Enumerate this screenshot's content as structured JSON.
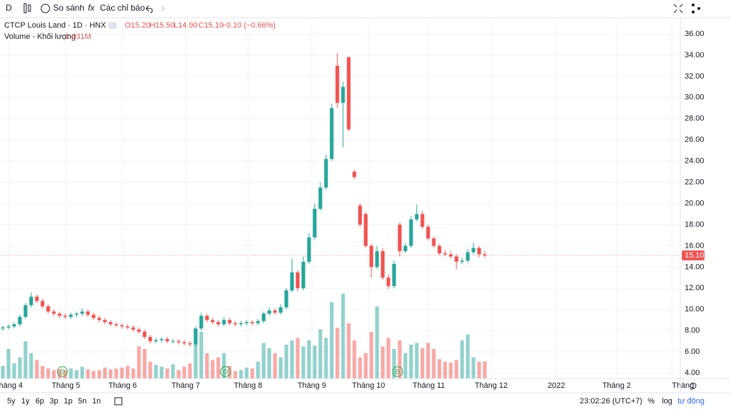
{
  "toolbar": {
    "interval": "D",
    "compare": "So sánh",
    "indicators": "Các chỉ báo"
  },
  "legend": {
    "symbol": "CTCP Louis Land · 1D · HNX",
    "open": "O15.20",
    "high": "H15.50",
    "low": "L14.90",
    "close": "C15.10",
    "change": "−0.10 (−0.66%)",
    "volume_name": "Volume - Khối lượng",
    "volume_value": "2.031M"
  },
  "chart_data": {
    "type": "candlestick",
    "x": [
      1,
      3,
      5,
      7,
      9,
      11,
      13,
      15,
      17,
      19,
      21,
      23,
      25,
      27,
      29,
      31,
      33,
      35,
      37,
      39,
      41,
      43,
      45,
      47,
      49,
      51,
      53,
      55,
      57,
      59,
      61,
      63,
      65,
      67,
      69,
      71,
      73,
      75,
      77,
      79,
      81,
      83,
      85,
      87,
      89,
      91,
      93,
      95,
      97,
      99,
      101,
      103,
      105,
      107,
      109,
      111,
      113,
      115,
      117,
      119,
      121,
      123,
      125,
      127,
      129,
      131,
      133,
      135,
      137,
      139,
      141,
      143,
      145,
      147,
      149,
      151,
      153,
      155,
      157,
      159,
      161,
      163,
      165,
      167,
      169,
      171
    ],
    "open": [
      8.2,
      8.3,
      8.4,
      8.6,
      9.3,
      10.4,
      11.2,
      10.8,
      10.3,
      9.8,
      9.6,
      9.4,
      9.3,
      9.5,
      9.6,
      9.8,
      9.5,
      9.2,
      9.0,
      8.8,
      8.6,
      8.5,
      8.4,
      8.3,
      8.1,
      7.9,
      7.4,
      7.0,
      7.1,
      7.2,
      7.0,
      7.0,
      6.9,
      6.8,
      6.7,
      8.2,
      9.4,
      9.0,
      8.8,
      8.6,
      9.0,
      8.7,
      8.6,
      8.7,
      8.8,
      8.7,
      8.9,
      9.6,
      9.9,
      9.7,
      10.2,
      11.8,
      13.5,
      12.0,
      14.5,
      16.8,
      19.5,
      21.5,
      24.2,
      33.0,
      29.5,
      33.8,
      23.0,
      19.8,
      19.0,
      16.0,
      14.0,
      15.5,
      13.0,
      12.2,
      18.0,
      15.5,
      16.0,
      18.5,
      19.0,
      17.8,
      16.7,
      16.0,
      15.3,
      15.2,
      15.0,
      14.5,
      14.6,
      15.4,
      15.8,
      15.2
    ],
    "high": [
      8.5,
      8.6,
      8.8,
      9.5,
      10.6,
      11.6,
      11.4,
      11.0,
      10.5,
      10.0,
      9.8,
      9.6,
      9.7,
      9.8,
      10.1,
      10.0,
      9.7,
      9.4,
      9.2,
      9.0,
      8.8,
      8.7,
      8.6,
      8.5,
      8.3,
      8.1,
      7.6,
      7.3,
      7.4,
      7.4,
      7.2,
      7.2,
      7.1,
      7.0,
      8.4,
      9.7,
      9.6,
      9.2,
      9.0,
      9.3,
      9.2,
      8.9,
      8.9,
      9.0,
      9.0,
      9.1,
      9.8,
      10.2,
      10.1,
      10.5,
      12.0,
      14.8,
      13.7,
      15.0,
      17.2,
      20.0,
      22.0,
      24.6,
      29.4,
      34.2,
      31.5,
      33.9,
      23.2,
      20.0,
      19.2,
      16.2,
      16.0,
      15.8,
      13.3,
      14.6,
      18.2,
      16.3,
      18.8,
      19.9,
      19.3,
      18.0,
      16.9,
      16.2,
      15.6,
      15.5,
      15.2,
      14.9,
      15.7,
      16.3,
      16.0,
      15.5
    ],
    "low": [
      8.0,
      8.1,
      8.2,
      8.4,
      9.1,
      10.2,
      10.6,
      10.1,
      9.6,
      9.4,
      9.2,
      9.1,
      9.1,
      9.3,
      9.4,
      9.3,
      9.0,
      8.8,
      8.6,
      8.4,
      8.3,
      8.2,
      8.1,
      7.9,
      7.7,
      7.2,
      6.8,
      6.8,
      6.9,
      6.8,
      6.8,
      6.7,
      6.6,
      6.5,
      6.5,
      8.0,
      8.8,
      8.6,
      8.4,
      8.4,
      8.5,
      8.4,
      8.4,
      8.5,
      8.5,
      8.5,
      8.7,
      9.4,
      9.5,
      9.5,
      10.0,
      11.6,
      11.7,
      11.8,
      14.3,
      16.6,
      19.3,
      21.3,
      24.0,
      29.0,
      25.3,
      26.8,
      22.3,
      17.8,
      15.8,
      13.0,
      13.8,
      12.8,
      11.9,
      12.0,
      15.0,
      15.3,
      15.8,
      18.3,
      17.6,
      16.5,
      15.8,
      15.1,
      15.0,
      14.8,
      13.8,
      14.3,
      14.4,
      15.2,
      14.9,
      14.9
    ],
    "close": [
      8.3,
      8.4,
      8.6,
      9.3,
      10.4,
      11.2,
      10.8,
      10.3,
      9.8,
      9.6,
      9.4,
      9.3,
      9.5,
      9.6,
      9.8,
      9.5,
      9.2,
      9.0,
      8.8,
      8.6,
      8.5,
      8.4,
      8.3,
      8.1,
      7.9,
      7.4,
      7.0,
      7.1,
      7.2,
      7.0,
      7.0,
      6.9,
      6.8,
      6.7,
      8.2,
      9.4,
      9.0,
      8.8,
      8.6,
      9.0,
      8.7,
      8.6,
      8.7,
      8.8,
      8.7,
      8.9,
      9.6,
      9.9,
      9.7,
      10.2,
      11.8,
      13.5,
      12.0,
      14.5,
      16.8,
      19.5,
      21.5,
      24.2,
      29.0,
      29.5,
      31.0,
      27.0,
      22.5,
      18.0,
      16.0,
      14.0,
      15.5,
      13.0,
      12.2,
      14.3,
      15.5,
      16.0,
      18.5,
      19.0,
      17.8,
      16.7,
      16.0,
      15.3,
      15.2,
      15.0,
      14.5,
      14.6,
      15.4,
      15.8,
      15.2,
      15.1
    ],
    "volume": [
      1.5,
      3.5,
      1.8,
      2.5,
      4.4,
      3.0,
      2.2,
      1.5,
      1.2,
      1.0,
      1.1,
      1.0,
      1.2,
      1.0,
      1.4,
      1.1,
      0.9,
      1.0,
      1.3,
      1.1,
      1.2,
      1.3,
      1.5,
      1.2,
      3.8,
      3.5,
      2.0,
      1.6,
      1.4,
      1.2,
      1.7,
      1.0,
      1.4,
      1.8,
      5.0,
      5.5,
      3.0,
      2.2,
      2.5,
      3.0,
      1.5,
      0.9,
      1.0,
      1.3,
      1.2,
      2.0,
      4.2,
      3.6,
      3.0,
      2.5,
      4.0,
      4.5,
      4.8,
      3.8,
      4.5,
      3.9,
      5.8,
      4.8,
      9.0,
      6.0,
      10.0,
      6.5,
      4.5,
      2.5,
      3.0,
      5.5,
      8.5,
      3.8,
      4.8,
      3.5,
      4.5,
      3.0,
      4.0,
      4.2,
      3.6,
      4.2,
      3.5,
      2.3,
      2.0,
      1.9,
      2.2,
      4.5,
      5.2,
      2.5,
      2.0,
      2.031
    ],
    "up_color": "#26a69a",
    "down_color": "#ef5350",
    "xlim": [
      0,
      240
    ],
    "xticks": [
      {
        "value": 3,
        "label": "Tháng 4"
      },
      {
        "value": 23.25,
        "label": "Tháng 5"
      },
      {
        "value": 43.25,
        "label": "Tháng 6"
      },
      {
        "value": 65.5,
        "label": "Tháng 7"
      },
      {
        "value": 87.5,
        "label": "Tháng 8"
      },
      {
        "value": 110,
        "label": "Tháng 9"
      },
      {
        "value": 130,
        "label": "Tháng 10"
      },
      {
        "value": 151.25,
        "label": "Tháng 11"
      },
      {
        "value": 173.25,
        "label": "Tháng 12"
      },
      {
        "value": 196.25,
        "label": "2022"
      },
      {
        "value": 217.5,
        "label": "Tháng 2"
      },
      {
        "value": 237,
        "label": "Tháng"
      }
    ],
    "ylim": [
      3.47,
      37.2
    ],
    "yticks": [
      {
        "value": 4,
        "label": "4.00"
      },
      {
        "value": 6,
        "label": "6.00"
      },
      {
        "value": 8,
        "label": "8.00"
      },
      {
        "value": 10,
        "label": "10.00"
      },
      {
        "value": 12,
        "label": "12.00"
      },
      {
        "value": 14,
        "label": "14.00"
      },
      {
        "value": 16,
        "label": "16.00"
      },
      {
        "value": 18,
        "label": "18.00"
      },
      {
        "value": 20,
        "label": "20.00"
      },
      {
        "value": 22,
        "label": "22.00"
      },
      {
        "value": 24,
        "label": "24.00"
      },
      {
        "value": 26,
        "label": "26.00"
      },
      {
        "value": 28,
        "label": "28.00"
      },
      {
        "value": 30,
        "label": "30.00"
      },
      {
        "value": 32,
        "label": "32.00"
      },
      {
        "value": 34,
        "label": "34.00"
      },
      {
        "value": 36,
        "label": "36.00"
      }
    ],
    "grid": true,
    "last_price": {
      "value": 15.1,
      "label": "15.10"
    },
    "events": [
      {
        "x": 22,
        "label": "D"
      },
      {
        "x": 79.5,
        "label": "D"
      },
      {
        "x": 140.25,
        "label": "D"
      }
    ]
  },
  "bottom_bar": {
    "ranges": [
      "5y",
      "1y",
      "6p",
      "3p",
      "1p",
      "5n",
      "1n"
    ],
    "clock": "23:02:26 (UTC+7)",
    "percent": "%",
    "log": "log",
    "auto": "tự động"
  }
}
